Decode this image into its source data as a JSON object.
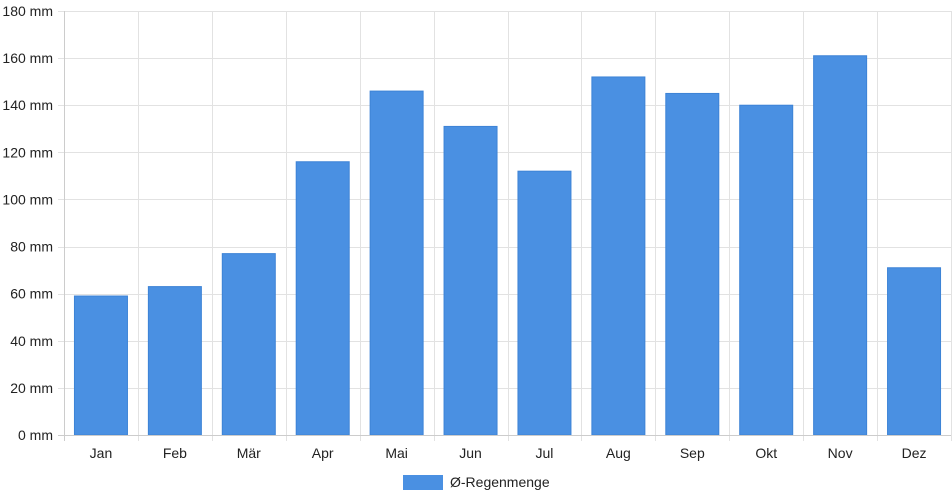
{
  "chart_data": {
    "type": "bar",
    "title": "",
    "xlabel": "",
    "ylabel": "",
    "categories": [
      "Jan",
      "Feb",
      "Mär",
      "Apr",
      "Mai",
      "Jun",
      "Jul",
      "Aug",
      "Sep",
      "Okt",
      "Nov",
      "Dez"
    ],
    "series": [
      {
        "name": "Ø-Regenmenge",
        "color": "#4a90e2",
        "values": [
          59,
          63,
          77,
          116,
          146,
          131,
          112,
          152,
          145,
          140,
          161,
          71
        ]
      }
    ],
    "ylim": [
      0,
      180
    ],
    "yticks": [
      0,
      20,
      40,
      60,
      80,
      100,
      120,
      140,
      160,
      180
    ],
    "ytick_suffix": " mm",
    "grid": true,
    "legend_position": "bottom"
  }
}
